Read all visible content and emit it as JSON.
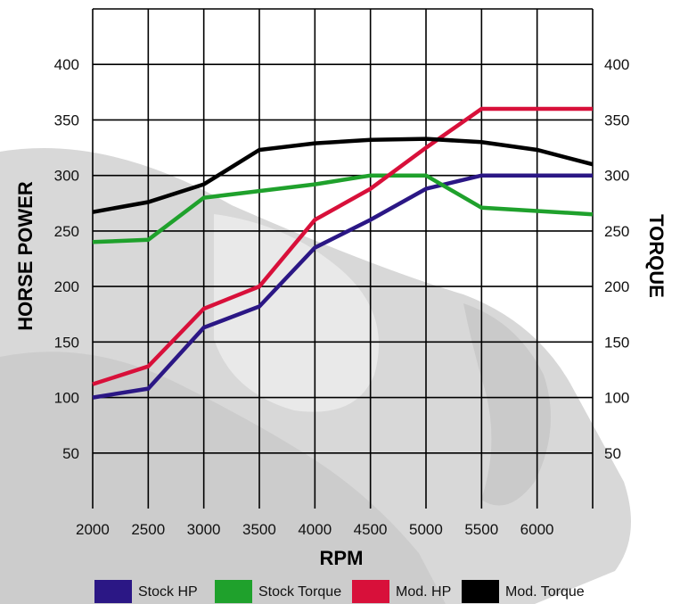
{
  "chart_data": {
    "type": "line",
    "title": "",
    "xlabel": "RPM",
    "ylabel_left": "HORSE POWER",
    "ylabel_right": "TORQUE",
    "x": [
      1800,
      2300,
      2800,
      3300,
      3800,
      4300,
      4800,
      5300,
      5800,
      6300
    ],
    "x_ticks": [
      "2000",
      "2500",
      "3000",
      "3500",
      "4000",
      "4500",
      "5000",
      "5500",
      "6000"
    ],
    "y_ticks_left": [
      "400",
      "350",
      "300",
      "250",
      "200",
      "150",
      "100",
      "50"
    ],
    "y_ticks_right": [
      "400",
      "350",
      "300",
      "250",
      "200",
      "150",
      "100",
      "50"
    ],
    "xlim": [
      1800,
      6300
    ],
    "ylim": [
      0,
      450
    ],
    "grid": true,
    "legend_position": "bottom",
    "series": [
      {
        "name": "Stock HP",
        "color": "#2b1785",
        "values": [
          100,
          108,
          163,
          182,
          235,
          260,
          288,
          300,
          300,
          300
        ]
      },
      {
        "name": "Stock Torque",
        "color": "#1fa12c",
        "values": [
          240,
          242,
          280,
          286,
          292,
          300,
          300,
          271,
          268,
          265
        ]
      },
      {
        "name": "Mod. HP",
        "color": "#d8103a",
        "values": [
          112,
          128,
          180,
          200,
          260,
          288,
          325,
          360,
          360,
          360
        ]
      },
      {
        "name": "Mod. Torque",
        "color": "#000000",
        "values": [
          267,
          276,
          292,
          323,
          329,
          332,
          333,
          330,
          323,
          310
        ]
      }
    ]
  }
}
